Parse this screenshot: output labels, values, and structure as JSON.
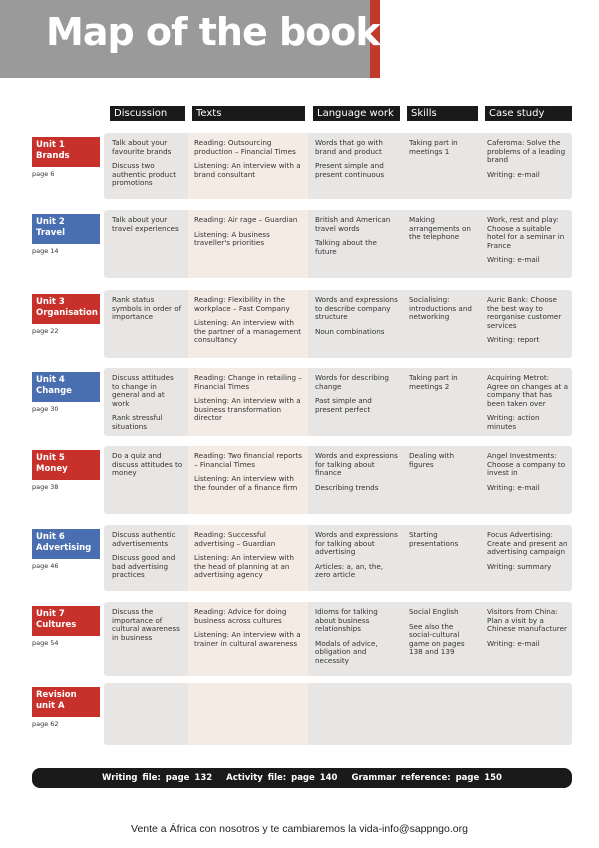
{
  "header": {
    "title": "Map of the book"
  },
  "columns": [
    "Discussion",
    "Texts",
    "Language work",
    "Skills",
    "Case study"
  ],
  "units": [
    {
      "unit": "Unit 1",
      "title": "Brands",
      "page": "page 6",
      "cells": [
        [
          "Talk about your favourite brands",
          "Discuss two authentic product promotions"
        ],
        [
          "Reading: Outsourcing production – Financial Times",
          "Listening: An interview with a brand consultant"
        ],
        [
          "Words that go with brand and product",
          "Present simple and present continuous"
        ],
        [
          "Taking part in meetings 1"
        ],
        [
          "Caferoma: Solve the problems of a leading brand",
          "Writing: e-mail"
        ]
      ]
    },
    {
      "unit": "Unit 2",
      "title": "Travel",
      "page": "page 14",
      "cells": [
        [
          "Talk about your travel experiences"
        ],
        [
          "Reading: Air rage – Guardian",
          "Listening: A business traveller's priorities"
        ],
        [
          "British and American travel words",
          "Talking about the future"
        ],
        [
          "Making arrangements on the telephone"
        ],
        [
          "Work, rest and play: Choose a suitable hotel for a seminar in France",
          "Writing: e-mail"
        ]
      ]
    },
    {
      "unit": "Unit 3",
      "title": "Organisation",
      "page": "page 22",
      "cells": [
        [
          "Rank status symbols in order of importance"
        ],
        [
          "Reading: Flexibility in the workplace – Fast Company",
          "Listening: An interview with the partner of a management consultancy"
        ],
        [
          "Words and expressions to describe company structure",
          "Noun combinations"
        ],
        [
          "Socialising: introductions and networking"
        ],
        [
          "Auric Bank: Choose the best way to reorganise customer services",
          "Writing: report"
        ]
      ]
    },
    {
      "unit": "Unit 4",
      "title": "Change",
      "page": "page 30",
      "cells": [
        [
          "Discuss attitudes to change in general and at work",
          "Rank stressful situations"
        ],
        [
          "Reading: Change in retailing – Financial Times",
          "Listening: An interview with a business transformation director"
        ],
        [
          "Words for describing change",
          "Past simple and present perfect"
        ],
        [
          "Taking part in meetings 2"
        ],
        [
          "Acquiring Metrot: Agree on changes at a company that has been taken over",
          "Writing: action minutes"
        ]
      ]
    },
    {
      "unit": "Unit 5",
      "title": "Money",
      "page": "page 38",
      "cells": [
        [
          "Do a quiz and discuss attitudes to money"
        ],
        [
          "Reading: Two financial reports – Financial Times",
          "Listening: An interview with the founder of a finance firm"
        ],
        [
          "Words and expressions for talking about finance",
          "Describing trends"
        ],
        [
          "Dealing with figures"
        ],
        [
          "Angel Investments: Choose a company to invest in",
          "Writing: e-mail"
        ]
      ]
    },
    {
      "unit": "Unit 6",
      "title": "Advertising",
      "page": "page 46",
      "cells": [
        [
          "Discuss authentic advertisements",
          "Discuss good and bad advertising practices"
        ],
        [
          "Reading: Successful advertising – Guardian",
          "Listening: An interview with the head of planning at an advertising agency"
        ],
        [
          "Words and expressions for talking about advertising",
          "Articles: a, an, the, zero article"
        ],
        [
          "Starting presentations"
        ],
        [
          "Focus Advertising: Create and present an advertising campaign",
          "Writing: summary"
        ]
      ]
    },
    {
      "unit": "Unit 7",
      "title": "Cultures",
      "page": "page 54",
      "cells": [
        [
          "Discuss the importance of cultural awareness in business"
        ],
        [
          "Reading: Advice for doing business across cultures",
          "Listening: An interview with a trainer in cultural awareness"
        ],
        [
          "Idioms for talking about business relationships",
          "Modals of advice, obligation and necessity"
        ],
        [
          "Social English",
          "See also the social-cultural game on pages 138 and 139"
        ],
        [
          "Visitors from China: Plan a visit by a Chinese manufacturer",
          "Writing: e-mail"
        ]
      ]
    },
    {
      "unit": "Revision",
      "title": "unit A",
      "page": "page 62",
      "cells": [
        [],
        [],
        [],
        [],
        []
      ]
    }
  ],
  "footer": [
    "Writing file: page 132",
    "Activity file: page 140",
    "Grammar reference: page 150"
  ],
  "caption": "Vente a África con nosotros y te cambiaremos la vida-info@sappngo.org"
}
